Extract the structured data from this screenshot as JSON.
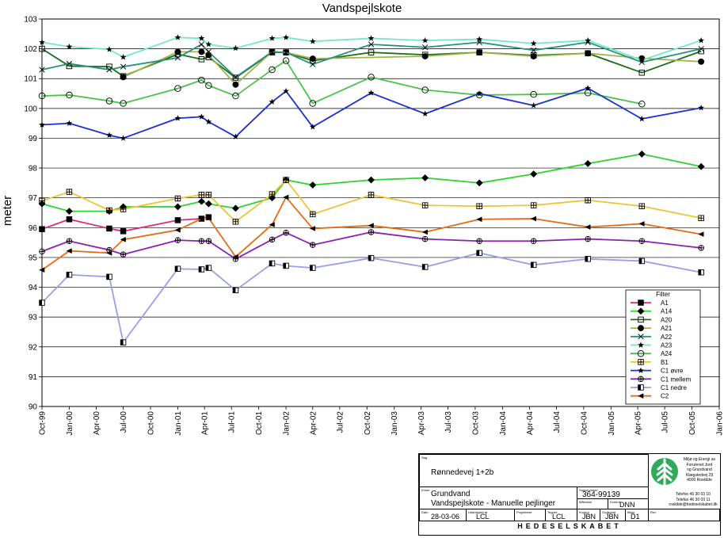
{
  "chart_data": {
    "type": "line",
    "title": "Vandspejlskote",
    "ylabel": "meter",
    "xlabel": "",
    "ylim": [
      90,
      103
    ],
    "yticks": [
      90,
      91,
      92,
      93,
      94,
      95,
      96,
      97,
      98,
      99,
      100,
      101,
      102,
      103
    ],
    "xlim": [
      "1999-10-01",
      "2006-01-01"
    ],
    "xticks": [
      {
        "date": "1999-10-01",
        "label": "Oct-99"
      },
      {
        "date": "2000-01-01",
        "label": "Jan-00"
      },
      {
        "date": "2000-04-01",
        "label": "Apr-00"
      },
      {
        "date": "2000-07-01",
        "label": "Jul-00"
      },
      {
        "date": "2000-10-01",
        "label": "Oct-00"
      },
      {
        "date": "2001-01-01",
        "label": "Jan-01"
      },
      {
        "date": "2001-04-01",
        "label": "Apr-01"
      },
      {
        "date": "2001-07-01",
        "label": "Jul-01"
      },
      {
        "date": "2001-10-01",
        "label": "Oct-01"
      },
      {
        "date": "2002-01-01",
        "label": "Jan-02"
      },
      {
        "date": "2002-04-01",
        "label": "Apr-02"
      },
      {
        "date": "2002-07-01",
        "label": "Jul-02"
      },
      {
        "date": "2002-10-01",
        "label": "Oct-02"
      },
      {
        "date": "2003-01-01",
        "label": "Jan-03"
      },
      {
        "date": "2003-04-01",
        "label": "Apr-03"
      },
      {
        "date": "2003-07-01",
        "label": "Jul-03"
      },
      {
        "date": "2003-10-01",
        "label": "Oct-03"
      },
      {
        "date": "2004-01-01",
        "label": "Jan-04"
      },
      {
        "date": "2004-04-01",
        "label": "Apr-04"
      },
      {
        "date": "2004-07-01",
        "label": "Jul-04"
      },
      {
        "date": "2004-10-01",
        "label": "Oct-04"
      },
      {
        "date": "2005-01-01",
        "label": "Jan-05"
      },
      {
        "date": "2005-04-01",
        "label": "Apr-05"
      },
      {
        "date": "2005-07-01",
        "label": "Jul-05"
      },
      {
        "date": "2005-10-01",
        "label": "Oct-05"
      },
      {
        "date": "2006-01-01",
        "label": "Jan-06"
      }
    ],
    "grid": true,
    "legend_title": "Filter",
    "legend_position": "bottom-right",
    "series": [
      {
        "name": "A1",
        "color": "#e0287e",
        "marker": "square-filled",
        "x": [
          "1999-10-01",
          "2000-01-01",
          "2000-05-15",
          "2000-07-01",
          "2001-01-01",
          "2001-03-22",
          "2001-04-15"
        ],
        "y": [
          95.95,
          96.28,
          95.97,
          95.88,
          96.25,
          96.3,
          96.35
        ]
      },
      {
        "name": "A14",
        "color": "#2ed42e",
        "marker": "diamond-filled",
        "x": [
          "1999-10-01",
          "2000-01-01",
          "2000-05-15",
          "2000-07-01",
          "2001-01-01",
          "2001-03-22",
          "2001-04-15",
          "2001-07-15",
          "2001-11-15",
          "2002-01-01",
          "2002-04-01",
          "2002-10-15",
          "2003-04-15",
          "2003-10-15",
          "2004-04-15",
          "2004-10-15",
          "2005-04-15",
          "2005-11-01"
        ],
        "y": [
          96.8,
          96.55,
          96.55,
          96.7,
          96.7,
          96.88,
          96.8,
          96.65,
          97.0,
          97.6,
          97.43,
          97.6,
          97.67,
          97.5,
          97.8,
          98.15,
          98.47,
          98.05
        ]
      },
      {
        "name": "A20",
        "color": "#1a6e1a",
        "marker": "square-open",
        "x": [
          "1999-10-01",
          "2000-01-01",
          "2000-05-15",
          "2000-07-01",
          "2001-01-01",
          "2001-03-22",
          "2001-04-15",
          "2001-07-15",
          "2001-11-15",
          "2002-01-01",
          "2002-04-01",
          "2002-10-15",
          "2003-04-15",
          "2003-10-15",
          "2004-04-15",
          "2004-10-15",
          "2005-04-15",
          "2005-11-01"
        ],
        "y": [
          102.0,
          101.42,
          101.4,
          101.08,
          101.82,
          101.65,
          101.72,
          101.03,
          101.88,
          101.88,
          101.6,
          101.88,
          101.8,
          101.88,
          101.78,
          101.85,
          101.2,
          101.92
        ]
      },
      {
        "name": "A21",
        "color": "#a4b44c",
        "marker": "circle-filled",
        "x": [
          "2000-07-01",
          "2001-01-01",
          "2001-03-22",
          "2001-04-15",
          "2001-07-15",
          "2001-11-15",
          "2002-01-01",
          "2002-04-01",
          "2003-04-15",
          "2003-10-15",
          "2004-04-15",
          "2004-10-15",
          "2005-04-15",
          "2005-11-01"
        ],
        "y": [
          101.05,
          101.9,
          101.9,
          101.8,
          100.8,
          101.9,
          101.88,
          101.67,
          101.75,
          101.88,
          101.75,
          101.85,
          101.68,
          101.57
        ]
      },
      {
        "name": "A22",
        "color": "#27917c",
        "marker": "x",
        "x": [
          "1999-10-01",
          "2000-01-01",
          "2000-05-15",
          "2000-07-01",
          "2001-01-01",
          "2001-03-22",
          "2001-04-15",
          "2001-07-15",
          "2001-11-15",
          "2002-01-01",
          "2002-04-01",
          "2002-10-15",
          "2003-04-15",
          "2003-10-15",
          "2004-04-15",
          "2004-10-15",
          "2005-04-15",
          "2005-11-01"
        ],
        "y": [
          101.3,
          101.5,
          101.3,
          101.4,
          101.7,
          102.15,
          101.9,
          101.05,
          101.9,
          101.88,
          101.48,
          102.15,
          102.05,
          102.22,
          101.95,
          102.22,
          101.55,
          102.0
        ]
      },
      {
        "name": "A23",
        "color": "#73e8c8",
        "marker": "star",
        "x": [
          "1999-10-01",
          "2000-01-01",
          "2000-05-15",
          "2000-07-01",
          "2001-01-01",
          "2001-03-22",
          "2001-04-15",
          "2001-07-15",
          "2001-11-15",
          "2002-01-01",
          "2002-04-01",
          "2002-10-15",
          "2003-04-15",
          "2003-10-15",
          "2004-04-15",
          "2004-10-15",
          "2005-04-15",
          "2005-11-01"
        ],
        "y": [
          102.22,
          102.07,
          101.98,
          101.72,
          102.38,
          102.35,
          102.15,
          102.02,
          102.35,
          102.38,
          102.25,
          102.35,
          102.28,
          102.32,
          102.18,
          102.28,
          101.62,
          102.28
        ]
      },
      {
        "name": "A24",
        "color": "#4cc24c",
        "marker": "circle-open",
        "x": [
          "1999-10-01",
          "2000-01-01",
          "2000-05-15",
          "2000-07-01",
          "2001-01-01",
          "2001-03-22",
          "2001-04-15",
          "2001-07-15",
          "2001-11-15",
          "2002-01-01",
          "2002-04-01",
          "2002-10-15",
          "2003-04-15",
          "2003-10-15",
          "2004-04-15",
          "2004-10-15",
          "2005-04-15"
        ],
        "y": [
          100.42,
          100.45,
          100.25,
          100.17,
          100.67,
          100.95,
          100.77,
          100.42,
          101.3,
          101.6,
          100.17,
          101.05,
          100.62,
          100.45,
          100.47,
          100.52,
          100.15
        ]
      },
      {
        "name": "B1",
        "color": "#f2c230",
        "marker": "square-plus",
        "x": [
          "1999-10-01",
          "2000-01-01",
          "2000-05-15",
          "2000-07-01",
          "2001-01-01",
          "2001-03-22",
          "2001-04-15",
          "2001-07-15",
          "2001-11-15",
          "2002-01-01",
          "2002-04-01",
          "2002-10-15",
          "2003-04-15",
          "2003-10-15",
          "2004-04-15",
          "2004-10-15",
          "2005-04-15",
          "2005-11-01"
        ],
        "y": [
          96.9,
          97.2,
          96.58,
          96.62,
          96.98,
          97.1,
          97.1,
          96.2,
          97.12,
          97.6,
          96.45,
          97.1,
          96.75,
          96.72,
          96.75,
          96.92,
          96.72,
          96.32
        ]
      },
      {
        "name": "C1 øvre",
        "color": "#1a2fd8",
        "marker": "star",
        "x": [
          "1999-10-01",
          "2000-01-01",
          "2000-05-15",
          "2000-07-01",
          "2001-01-01",
          "2001-03-22",
          "2001-04-15",
          "2001-07-15",
          "2001-11-15",
          "2002-01-01",
          "2002-04-01",
          "2002-10-15",
          "2003-04-15",
          "2003-10-15",
          "2004-04-15",
          "2004-10-15",
          "2005-04-15",
          "2005-11-01"
        ],
        "y": [
          99.45,
          99.5,
          99.1,
          99.0,
          99.67,
          99.72,
          99.55,
          99.05,
          100.22,
          100.58,
          99.38,
          100.52,
          99.82,
          100.5,
          100.1,
          100.68,
          99.65,
          100.02
        ]
      },
      {
        "name": "C1 mellem",
        "color": "#8a22b4",
        "marker": "circle-plus",
        "x": [
          "1999-10-01",
          "2000-01-01",
          "2000-05-15",
          "2000-07-01",
          "2001-01-01",
          "2001-03-22",
          "2001-04-15",
          "2001-07-15",
          "2001-11-15",
          "2002-01-01",
          "2002-04-01",
          "2002-10-15",
          "2003-04-15",
          "2003-10-15",
          "2004-04-15",
          "2004-10-15",
          "2005-04-15",
          "2005-11-01"
        ],
        "y": [
          95.2,
          95.55,
          95.25,
          95.1,
          95.58,
          95.55,
          95.55,
          94.95,
          95.6,
          95.83,
          95.42,
          95.85,
          95.62,
          95.55,
          95.55,
          95.62,
          95.55,
          95.32
        ]
      },
      {
        "name": "C1 nedre",
        "color": "#9a9ee8",
        "marker": "square-half",
        "x": [
          "1999-10-01",
          "2000-01-01",
          "2000-05-15",
          "2000-07-01",
          "2001-01-01",
          "2001-03-22",
          "2001-04-15",
          "2001-07-15",
          "2001-11-15",
          "2002-01-01",
          "2002-04-01",
          "2002-10-15",
          "2003-04-15",
          "2003-10-15",
          "2004-04-15",
          "2004-10-15",
          "2005-04-15",
          "2005-11-01"
        ],
        "y": [
          93.48,
          94.42,
          94.35,
          92.15,
          94.62,
          94.6,
          94.65,
          93.9,
          94.8,
          94.72,
          94.65,
          94.98,
          94.68,
          95.15,
          94.75,
          94.95,
          94.88,
          94.5
        ]
      },
      {
        "name": "C2",
        "color": "#e86a14",
        "marker": "triangle-left",
        "x": [
          "1999-10-01",
          "2000-01-01",
          "2000-05-15",
          "2000-07-01",
          "2001-01-01",
          "2001-03-22",
          "2001-04-15",
          "2001-07-15",
          "2001-11-15",
          "2002-01-01",
          "2002-04-01",
          "2002-10-15",
          "2003-04-15",
          "2003-10-15",
          "2004-04-15",
          "2004-10-15",
          "2005-04-15",
          "2005-11-01"
        ],
        "y": [
          94.58,
          95.22,
          95.15,
          95.6,
          95.92,
          96.3,
          96.32,
          95.02,
          96.1,
          97.02,
          95.97,
          96.07,
          95.85,
          96.28,
          96.3,
          96.02,
          96.13,
          95.78
        ]
      }
    ]
  },
  "titleblock": {
    "sag_label": "Sag",
    "sag_value": "Rønnedevej 1+2b",
    "emne_label": "Emne",
    "emne_line1": "Grundvand",
    "emne_line2": "Vandspejlskote - Manuelle pejlinger",
    "sagsnr_label": "Sagsnummer",
    "sagsnr_value": "364-99139",
    "maalestok_label": "Målestok",
    "kontrol_label": "Kontrol",
    "kontrol_value": "DNN",
    "dato_label": "Dato",
    "dato_value": "28-03-06",
    "udarbejdet_label": "Udarbejdet af",
    "udarbejdet_value": "LCL",
    "projekteret_label": "Projekteret",
    "tegnet_label": "Tegnet",
    "tegnet_value": "LCL",
    "kontrol2_label": "Kontrol",
    "kontrol2_value": "JBN",
    "godkendt_label": "Godkendt",
    "godkendt_value": "JBN",
    "bilag_label": "Bilag",
    "bilag_value": "D1",
    "rev_label": "Rev",
    "company": "HEDESELSKABET",
    "logo_text": [
      "Miljø og Energi as",
      "Forurenet Jord",
      "og Grundvand",
      "Klægstedvej 29",
      "4000 Roskilde"
    ],
    "contact_text": [
      "Telefon 46 30 03 10",
      "Telefax 46 30 03 11",
      "roskilde@hedeselskabet.dk"
    ],
    "brand_green": "#2eaa5a"
  }
}
